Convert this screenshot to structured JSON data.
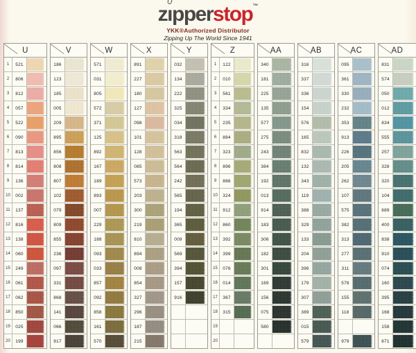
{
  "header": {
    "logo_z": "z",
    "logo_i": "ı",
    "logo_pper": "pper",
    "logo_stop": "stop",
    "logo_tm": "™",
    "subtitle1": "YKK®Authorized Distributor",
    "subtitle2": "Zipping Up The World Since 1941",
    "colors": {
      "logo_dark": "#4a4846",
      "logo_red": "#c9252b",
      "distributor_text": "#7d2c1e",
      "tagline_text": "#1f1f1f"
    }
  },
  "columns": [
    {
      "label": "U",
      "numbered": true,
      "rows": [
        [
          "1",
          "521",
          "#f3d9b0"
        ],
        [
          "2",
          "806",
          "#f4bdb0"
        ],
        [
          "3",
          "812",
          "#f1aba3"
        ],
        [
          "4",
          "057",
          "#f1a276"
        ],
        [
          "5",
          "522",
          "#ed9c61"
        ],
        [
          "6",
          "090",
          "#ed957a"
        ],
        [
          "7",
          "813",
          "#e98a82"
        ],
        [
          "8",
          "814",
          "#e5786d"
        ],
        [
          "9",
          "136",
          "#d5786f"
        ],
        [
          "10",
          "002",
          "#cb6e64"
        ],
        [
          "11",
          "137",
          "#ba5749"
        ],
        [
          "12",
          "816",
          "#da5440"
        ],
        [
          "13",
          "138",
          "#d24c38"
        ],
        [
          "14",
          "060",
          "#cf4c2f"
        ],
        [
          "15",
          "249",
          "#bd665a"
        ],
        [
          "16",
          "061",
          "#b04d3e"
        ],
        [
          "17",
          "062",
          "#a74b3d"
        ],
        [
          "18",
          "850",
          "#9f4d39"
        ],
        [
          "19",
          "025",
          "#9d3b33"
        ],
        [
          "20",
          "199",
          "#a33730"
        ]
      ]
    },
    {
      "label": "V",
      "numbered": false,
      "rows": [
        [
          "",
          "186",
          "#efe9d3"
        ],
        [
          "",
          "123",
          "#f2edd9"
        ],
        [
          "",
          "185",
          "#f0e6ca"
        ],
        [
          "",
          "005",
          "#f4ebd1"
        ],
        [
          "",
          "209",
          "#d8b685"
        ],
        [
          "",
          "895",
          "#cc9d4e"
        ],
        [
          "",
          "856",
          "#b57520"
        ],
        [
          "",
          "808",
          "#ab6b21"
        ],
        [
          "",
          "807",
          "#c07529"
        ],
        [
          "",
          "102",
          "#9d5222"
        ],
        [
          "",
          "079",
          "#7d3f1d"
        ],
        [
          "",
          "809",
          "#8d3d20"
        ],
        [
          "",
          "855",
          "#7f3722"
        ],
        [
          "",
          "236",
          "#6c3126"
        ],
        [
          "",
          "097",
          "#754139"
        ],
        [
          "",
          "331",
          "#6e4038"
        ],
        [
          "",
          "868",
          "#5e453b"
        ],
        [
          "",
          "141",
          "#4d3b33"
        ],
        [
          "",
          "066",
          "#474130"
        ],
        [
          "",
          "917",
          "#3f372c"
        ]
      ]
    },
    {
      "label": "W",
      "numbered": false,
      "rows": [
        [
          "",
          "571",
          "#f6f1d5"
        ],
        [
          "",
          "031",
          "#f8f2ce"
        ],
        [
          "",
          "805",
          "#f6edbb"
        ],
        [
          "",
          "572",
          "#dacea2"
        ],
        [
          "",
          "371",
          "#d5c892"
        ],
        [
          "",
          "125",
          "#d8c284"
        ],
        [
          "",
          "892",
          "#d3b36a"
        ],
        [
          "",
          "167",
          "#cca65b"
        ],
        [
          "",
          "189",
          "#c69e4b"
        ],
        [
          "",
          "893",
          "#bb9442"
        ],
        [
          "",
          "007",
          "#b39442"
        ],
        [
          "",
          "229",
          "#ac944a"
        ],
        [
          "",
          "188",
          "#a6904c"
        ],
        [
          "",
          "093",
          "#9e8441"
        ],
        [
          "",
          "033",
          "#94793b"
        ],
        [
          "",
          "857",
          "#a07e35"
        ],
        [
          "",
          "092",
          "#8e7336"
        ],
        [
          "",
          "858",
          "#867132"
        ],
        [
          "",
          "161",
          "#756532"
        ],
        [
          "",
          "570",
          "#4e412b"
        ]
      ]
    },
    {
      "label": "X",
      "numbered": false,
      "rows": [
        [
          "",
          "891",
          "#e4d4aa"
        ],
        [
          "",
          "227",
          "#ddcba0"
        ],
        [
          "",
          "180",
          "#d8c89c"
        ],
        [
          "",
          "127",
          "#e0c4a1"
        ],
        [
          "",
          "098",
          "#dcb99d"
        ],
        [
          "",
          "101",
          "#d8c49a"
        ],
        [
          "",
          "128",
          "#d4c096"
        ],
        [
          "",
          "085",
          "#cdbd93"
        ],
        [
          "",
          "573",
          "#c8b48b"
        ],
        [
          "",
          "203",
          "#beb08a"
        ],
        [
          "",
          "300",
          "#a9a073"
        ],
        [
          "",
          "219",
          "#a89c6f"
        ],
        [
          "",
          "810",
          "#b4ac8e"
        ],
        [
          "",
          "894",
          "#a99d7b"
        ],
        [
          "",
          "008",
          "#a99982"
        ],
        [
          "",
          "854",
          "#a3957f"
        ],
        [
          "",
          "327",
          "#9e9485"
        ],
        [
          "",
          "296",
          "#958b7c"
        ],
        [
          "",
          "187",
          "#8f887c"
        ],
        [
          "",
          "215",
          "#7e7263"
        ]
      ]
    },
    {
      "label": "Y",
      "numbered": false,
      "rows": [
        [
          "",
          "032",
          "#c4c0b1"
        ],
        [
          "",
          "134",
          "#a8a89c"
        ],
        [
          "",
          "222",
          "#8c8c7d"
        ],
        [
          "",
          "325",
          "#80806c"
        ],
        [
          "",
          "034",
          "#6c6c59"
        ],
        [
          "",
          "318",
          "#74745d"
        ],
        [
          "",
          "563",
          "#6c6c51"
        ],
        [
          "",
          "564",
          "#646449"
        ],
        [
          "",
          "242",
          "#6a684d"
        ],
        [
          "",
          "565",
          "#5e5c41"
        ],
        [
          "",
          "194",
          "#585838"
        ],
        [
          "",
          "365",
          "#545431"
        ],
        [
          "",
          "009",
          "#5c5431"
        ],
        [
          "",
          "569",
          "#4c4c2d"
        ],
        [
          "",
          "394",
          "#484828"
        ],
        [
          "",
          "157",
          "#3c3c24"
        ],
        [
          "",
          "916",
          "#343421"
        ],
        [
          "",
          "",
          ""
        ],
        [
          "",
          "",
          ""
        ],
        [
          "",
          "",
          ""
        ]
      ]
    },
    {
      "label": "Z",
      "numbered": true,
      "rows": [
        [
          "1",
          "122",
          "#eeeece"
        ],
        [
          "2",
          "010",
          "#d9d9aa"
        ],
        [
          "3",
          "561",
          "#b9bd8a"
        ],
        [
          "4",
          "334",
          "#b1b992"
        ],
        [
          "5",
          "235",
          "#b4b586"
        ],
        [
          "6",
          "884",
          "#a9ac7e"
        ],
        [
          "7",
          "323",
          "#9ca984"
        ],
        [
          "8",
          "896",
          "#a4a972"
        ],
        [
          "9",
          "886",
          "#9ca46a"
        ],
        [
          "10",
          "324",
          "#8c9458"
        ],
        [
          "11",
          "912",
          "#8c9c74"
        ],
        [
          "12",
          "860",
          "#6c8051"
        ],
        [
          "13",
          "392",
          "#74845c"
        ],
        [
          "14",
          "399",
          "#5c7148"
        ],
        [
          "15",
          "076",
          "#60744c"
        ],
        [
          "16",
          "014",
          "#587050"
        ],
        [
          "17",
          "367",
          "#60745c"
        ],
        [
          "18",
          "315",
          "#4c6448"
        ],
        [
          "19",
          "",
          ""
        ],
        [
          "20",
          "",
          ""
        ]
      ]
    },
    {
      "label": "AA",
      "numbered": false,
      "rows": [
        [
          "",
          "340",
          "#a8b4a0"
        ],
        [
          "",
          "181",
          "#9cab9c"
        ],
        [
          "",
          "225",
          "#92a191"
        ],
        [
          "",
          "135",
          "#8a9a8a"
        ],
        [
          "",
          "577",
          "#7e9486"
        ],
        [
          "",
          "275",
          "#748878"
        ],
        [
          "",
          "243",
          "#6a7e70"
        ],
        [
          "",
          "384",
          "#60786a"
        ],
        [
          "",
          "192",
          "#586e60"
        ],
        [
          "",
          "013",
          "#4c6456"
        ],
        [
          "",
          "914",
          "#44584c"
        ],
        [
          "",
          "183",
          "#3e5246"
        ],
        [
          "",
          "306",
          "#364a3e"
        ],
        [
          "",
          "182",
          "#304238"
        ],
        [
          "",
          "301",
          "#2a3c32"
        ],
        [
          "",
          "169",
          "#242e28"
        ],
        [
          "",
          "156",
          "#202a24"
        ],
        [
          "",
          "075",
          "#1e2822"
        ],
        [
          "",
          "580",
          "#1a241e"
        ],
        [
          "",
          "",
          ""
        ]
      ]
    },
    {
      "label": "AB",
      "numbered": false,
      "rows": [
        [
          "",
          "316",
          "#dce4dc"
        ],
        [
          "",
          "337",
          "#d4dcd8"
        ],
        [
          "",
          "336",
          "#ccd8d0"
        ],
        [
          "",
          "154",
          "#c8d4cc"
        ],
        [
          "",
          "576",
          "#b0bca8"
        ],
        [
          "",
          "165",
          "#bcc8bc"
        ],
        [
          "",
          "832",
          "#a8b8ac"
        ],
        [
          "",
          "132",
          "#aab8b0"
        ],
        [
          "",
          "343",
          "#9cb0a4"
        ],
        [
          "",
          "119",
          "#9cb0ac"
        ],
        [
          "",
          "388",
          "#94a8a0"
        ],
        [
          "",
          "329",
          "#8ca098"
        ],
        [
          "",
          "133",
          "#84988c"
        ],
        [
          "",
          "204",
          "#8c9c94"
        ],
        [
          "",
          "396",
          "#90a49c"
        ],
        [
          "",
          "179",
          "#a0b0a4"
        ],
        [
          "",
          "307",
          "#8c9c94"
        ],
        [
          "",
          "389",
          "#44584c"
        ],
        [
          "",
          "015",
          "#3c5048"
        ],
        [
          "",
          "579",
          "#3a4c48"
        ]
      ]
    },
    {
      "label": "AC",
      "numbered": false,
      "rows": [
        [
          "",
          "095",
          "#a8c0cc"
        ],
        [
          "",
          "361",
          "#9cb4c4"
        ],
        [
          "",
          "330",
          "#94acbc"
        ],
        [
          "",
          "232",
          "#a0bcc8"
        ],
        [
          "",
          "353",
          "#5c7c84"
        ],
        [
          "",
          "913",
          "#547484"
        ],
        [
          "",
          "226",
          "#4c6c78"
        ],
        [
          "",
          "205",
          "#60808c"
        ],
        [
          "",
          "262",
          "#68828c"
        ],
        [
          "",
          "107",
          "#587078"
        ],
        [
          "",
          "575",
          "#506c74"
        ],
        [
          "",
          "382",
          "#4c6870"
        ],
        [
          "",
          "313",
          "#44606c"
        ],
        [
          "",
          "277",
          "#50686c"
        ],
        [
          "",
          "311",
          "#5c7478"
        ],
        [
          "",
          "578",
          "#4c6468"
        ],
        [
          "",
          "155",
          "#566a68"
        ],
        [
          "",
          "118",
          "#4c6060"
        ],
        [
          "",
          "",
          ""
        ],
        [
          "",
          "979",
          "#32484a"
        ]
      ]
    },
    {
      "label": "AD",
      "numbered": false,
      "rows": [
        [
          "",
          "831",
          "#ccd8c8"
        ],
        [
          "",
          "574",
          "#c8d0c0"
        ],
        [
          "",
          "050",
          "#68a8a8"
        ],
        [
          "",
          "012",
          "#5898a0"
        ],
        [
          "",
          "834",
          "#4890a0"
        ],
        [
          "",
          "555",
          "#549098"
        ],
        [
          "",
          "257",
          "#78a098"
        ],
        [
          "",
          "328",
          "#5c8884"
        ],
        [
          "",
          "320",
          "#3c6c6c"
        ],
        [
          "",
          "104",
          "#346464"
        ],
        [
          "",
          "689",
          "#3c6450"
        ],
        [
          "",
          "400",
          "#2c5858"
        ],
        [
          "",
          "838",
          "#1e4c58"
        ],
        [
          "",
          "910",
          "#1c4450"
        ],
        [
          "",
          "074",
          "#1c4448"
        ],
        [
          "",
          "160",
          "#203c44"
        ],
        [
          "",
          "395",
          "#1a3438"
        ],
        [
          "",
          "168",
          "#162c30"
        ],
        [
          "",
          "158",
          "#142828"
        ],
        [
          "",
          "671",
          "#122424"
        ]
      ]
    }
  ]
}
